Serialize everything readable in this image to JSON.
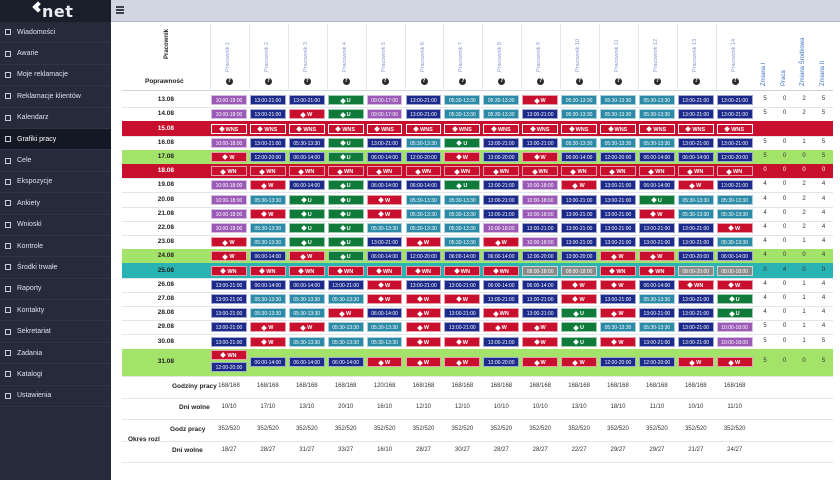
{
  "app": {
    "logo_text": "net"
  },
  "menu": [
    {
      "label": "Wiadomości",
      "icon": "message-icon"
    },
    {
      "label": "Awarie",
      "icon": "warning-icon"
    },
    {
      "label": "Moje reklamacje",
      "icon": "bookmark-icon"
    },
    {
      "label": "Reklamacje klientów",
      "icon": "users-icon"
    },
    {
      "label": "Kalendarz",
      "icon": "calendar-icon"
    },
    {
      "label": "Grafiki pracy",
      "icon": "schedule-icon",
      "active": true
    },
    {
      "label": "Cele",
      "icon": "target-icon"
    },
    {
      "label": "Ekspozycje",
      "icon": "display-icon"
    },
    {
      "label": "Ankiety",
      "icon": "survey-icon"
    },
    {
      "label": "Wnioski",
      "icon": "request-icon"
    },
    {
      "label": "Kontrole",
      "icon": "check-icon"
    },
    {
      "label": "Środki trwałe",
      "icon": "assets-icon"
    },
    {
      "label": "Raporty",
      "icon": "report-icon"
    },
    {
      "label": "Kontakty",
      "icon": "contacts-icon"
    },
    {
      "label": "Sekretariat",
      "icon": "office-icon"
    },
    {
      "label": "Zadania",
      "icon": "tasks-icon"
    },
    {
      "label": "Katalogi",
      "icon": "catalog-icon"
    },
    {
      "label": "Ustawienia",
      "icon": "settings-icon"
    }
  ],
  "table": {
    "employee_header": "Pracownik",
    "correctness_label": "Poprawność",
    "correctness_mark": "?",
    "employees": [
      "Pracownik 1",
      "Pracownik 2",
      "Pracownik 3",
      "Pracownik 4",
      "Pracownik 5",
      "Pracownik 6",
      "Pracownik 7",
      "Pracownik 8",
      "Pracownik 9",
      "Pracownik 10",
      "Pracownik 11",
      "Pracownik 12",
      "Pracownik 13",
      "Pracownik 14"
    ],
    "stat_headers": [
      "Zmiana I",
      "Praca",
      "Zmiana Środkowa",
      "Zmiana II"
    ],
    "rows": [
      {
        "date": "13.08",
        "cls": "",
        "cells": [
          "P:10:00-18:00",
          "B:13:00-21:00",
          "B:13:00-21:00",
          "U",
          "P:09:00-17:00",
          "B:13:00-21:00",
          "T:05:30-13:30",
          "T:05:30-13:30",
          "W",
          "T:05:30-13:30",
          "T:05:30-13:30",
          "T:05:30-13:30",
          "B:13:00-21:00",
          "B:13:00-21:00"
        ],
        "stats": [
          "5",
          "0",
          "2",
          "5"
        ]
      },
      {
        "date": "14.08",
        "cls": "",
        "cells": [
          "P:10:00-18:00",
          "B:13:00-21:00",
          "W",
          "U",
          "P:09:00-17:00",
          "B:13:00-21:00",
          "T:05:30-13:30",
          "T:05:30-13:30",
          "B:13:00-21:00",
          "T:05:30-13:30",
          "T:05:30-13:30",
          "T:05:30-13:30",
          "B:13:00-21:00",
          "B:13:00-21:00"
        ],
        "stats": [
          "5",
          "0",
          "2",
          "5"
        ]
      },
      {
        "date": "15.08",
        "cls": "red",
        "cells": [
          "WNS",
          "WNS",
          "WNS",
          "WNS",
          "WNS",
          "WNS",
          "WNS",
          "WNS",
          "WNS",
          "WNS",
          "WNS",
          "WNS",
          "WNS",
          "WNS"
        ],
        "stats": [
          "",
          "",
          "",
          ""
        ]
      },
      {
        "date": "16.08",
        "cls": "",
        "cells": [
          "P:10:00-18:00",
          "B:13:00-21:00",
          "B:05:30-13:30",
          "U",
          "B:13:00-21:00",
          "T:05:30-13:30",
          "U",
          "B:13:00-21:00",
          "B:13:00-21:00",
          "T:05:30-13:30",
          "T:05:30-13:30",
          "T:05:30-13:30",
          "B:13:00-21:00",
          "B:13:00-21:00"
        ],
        "stats": [
          "5",
          "0",
          "1",
          "5"
        ]
      },
      {
        "date": "17.08",
        "cls": "green",
        "cells": [
          "W",
          "B:12:00-20:00",
          "B:06:00-14:00",
          "U",
          "B:06:00-14:00",
          "B:12:00-20:00",
          "W",
          "B:13:00-20:00",
          "W",
          "B:06:00-14:00",
          "B:12:00-20:00",
          "B:06:00-14:00",
          "B:06:00-14:00",
          "B:12:00-20:00"
        ],
        "stats": [
          "5",
          "0",
          "0",
          "5"
        ]
      },
      {
        "date": "18.08",
        "cls": "red",
        "cells": [
          "WN",
          "WN",
          "WN",
          "WN",
          "WN",
          "WN",
          "WN",
          "WN",
          "WN",
          "WN",
          "WN",
          "WN",
          "WN",
          "WN"
        ],
        "stats": [
          "0",
          "0",
          "0",
          "0"
        ]
      },
      {
        "date": "19.08",
        "cls": "",
        "cells": [
          "P:10:00-18:00",
          "W",
          "B:06:00-14:00",
          "U",
          "B:06:00-14:00",
          "B:06:00-14:00",
          "U",
          "B:13:00-21:00",
          "P:10:00-18:00",
          "W",
          "B:13:00-21:00",
          "B:06:00-14:00",
          "W",
          "B:13:00-21:00"
        ],
        "stats": [
          "4",
          "0",
          "2",
          "4"
        ]
      },
      {
        "date": "20.08",
        "cls": "",
        "cells": [
          "P:10:00-18:00",
          "T:05:30-13:30",
          "U",
          "U",
          "W",
          "T:05:30-13:30",
          "T:05:30-13:30",
          "B:13:00-21:00",
          "P:10:00-18:00",
          "B:13:00-21:00",
          "B:13:00-21:00",
          "U",
          "T:05:30-13:30",
          "T:05:30-13:30"
        ],
        "stats": [
          "4",
          "0",
          "2",
          "4"
        ]
      },
      {
        "date": "21.08",
        "cls": "",
        "cells": [
          "P:10:00-18:00",
          "W",
          "U",
          "U",
          "W",
          "T:05:30-13:30",
          "T:05:30-13:30",
          "B:13:00-21:00",
          "P:10:00-18:00",
          "B:13:00-21:00",
          "B:13:00-21:00",
          "W",
          "T:05:30-13:30",
          "T:05:30-13:30"
        ],
        "stats": [
          "4",
          "0",
          "2",
          "4"
        ]
      },
      {
        "date": "22.08",
        "cls": "",
        "cells": [
          "P:10:00-18:00",
          "T:05:30-13:30",
          "U",
          "U",
          "T:05:30-13:30",
          "T:05:30-13:30",
          "T:05:30-13:30",
          "P:10:00-18:00",
          "B:13:00-21:00",
          "B:13:00-21:00",
          "B:13:00-21:00",
          "B:13:00-21:00",
          "B:13:00-21:00",
          "W"
        ],
        "stats": [
          "4",
          "0",
          "2",
          "4"
        ]
      },
      {
        "date": "23.08",
        "cls": "",
        "cells": [
          "W",
          "T:05:30-13:30",
          "U",
          "U",
          "B:13:00-21:00",
          "W",
          "T:05:30-13:30",
          "W",
          "P:10:00-18:00",
          "B:13:00-21:00",
          "B:13:00-21:00",
          "B:13:00-21:00",
          "B:13:00-21:00",
          "T:05:30-13:30"
        ],
        "stats": [
          "4",
          "0",
          "1",
          "4"
        ]
      },
      {
        "date": "24.08",
        "cls": "green",
        "cells": [
          "W",
          "B:06:00-14:00",
          "W",
          "U",
          "B:06:00-14:00",
          "B:12:00-20:00",
          "B:06:00-14:00",
          "B:06:00-14:00",
          "B:12:00-20:00",
          "B:13:00-20:00",
          "W",
          "W",
          "B:12:00-20:00",
          "B:06:00-14:00"
        ],
        "stats": [
          "4",
          "0",
          "0",
          "4"
        ]
      },
      {
        "date": "25.08",
        "cls": "teal",
        "cells": [
          "WN",
          "WN",
          "WN",
          "WN",
          "WN",
          "WN",
          "WN",
          "WN",
          "G:08:00-18:00",
          "G:08:00-18:00",
          "WN",
          "WN",
          "G:08:00-20:00",
          "G:08:00-18:00"
        ],
        "stats": [
          "0",
          "4",
          "0",
          "0"
        ]
      },
      {
        "date": "26.08",
        "cls": "",
        "cells": [
          "B:13:00-21:00",
          "B:06:00-14:00",
          "B:06:00-14:00",
          "B:13:00-21:00",
          "W",
          "B:13:00-21:00",
          "B:13:00-21:00",
          "B:06:00-14:00",
          "B:06:00-14:00",
          "W",
          "W",
          "B:06:00-14:00",
          "WN",
          "W"
        ],
        "stats": [
          "4",
          "0",
          "1",
          "4"
        ]
      },
      {
        "date": "27.08",
        "cls": "",
        "cells": [
          "B:13:00-21:00",
          "T:05:30-13:30",
          "T:05:30-13:30",
          "T:05:30-13:30",
          "W",
          "W",
          "W",
          "B:13:00-21:00",
          "B:13:00-21:00",
          "W",
          "B:13:00-21:00",
          "T:05:30-13:30",
          "B:13:00-21:00",
          "U"
        ],
        "stats": [
          "4",
          "0",
          "1",
          "4"
        ]
      },
      {
        "date": "28.08",
        "cls": "",
        "cells": [
          "B:13:00-21:00",
          "T:05:30-13:30",
          "T:05:30-13:30",
          "W",
          "B:06:00-14:00",
          "W",
          "B:13:00-21:00",
          "WN",
          "B:13:00-21:00",
          "U",
          "W",
          "B:13:00-21:00",
          "B:13:00-21:00",
          "U"
        ],
        "stats": [
          "4",
          "0",
          "1",
          "4"
        ]
      },
      {
        "date": "29.08",
        "cls": "",
        "cells": [
          "B:13:00-21:00",
          "W",
          "W",
          "T:05:30-13:30",
          "T:05:30-13:30",
          "W",
          "B:13:00-21:00",
          "W",
          "W",
          "U",
          "T:05:30-13:30",
          "T:05:30-13:30",
          "B:13:00-21:00",
          "P:10:00-18:00"
        ],
        "stats": [
          "5",
          "0",
          "1",
          "4"
        ]
      },
      {
        "date": "30.08",
        "cls": "",
        "cells": [
          "B:13:00-21:00",
          "W",
          "T:05:30-13:30",
          "T:05:30-13:30",
          "T:05:30-13:30",
          "W",
          "W",
          "B:13:00-21:00",
          "W",
          "U",
          "W",
          "B:13:00-21:00",
          "B:13:00-21:00",
          "P:10:00-18:00"
        ],
        "stats": [
          "5",
          "0",
          "1",
          "5"
        ]
      },
      {
        "date": "31.08",
        "cls": "green",
        "cells": [
          "WN+B:12:00-20:00",
          "B:06:00-14:00",
          "B:06:00-14:00",
          "B:06:00-14:00",
          "W",
          "W",
          "W",
          "B:13:00-20:00",
          "W",
          "W",
          "B:12:00-20:00",
          "B:12:00-20:00",
          "W",
          "W"
        ],
        "stats": [
          "5",
          "0",
          "0",
          "5"
        ]
      }
    ],
    "summary": {
      "hours_label": "Godziny pracy",
      "hours": [
        "168/168",
        "168/168",
        "168/168",
        "168/168",
        "120/168",
        "168/168",
        "168/168",
        "168/168",
        "168/168",
        "168/168",
        "168/168",
        "168/168",
        "168/168",
        "168/168"
      ],
      "free_label": "Dni wolne",
      "free": [
        "10/10",
        "17/10",
        "13/10",
        "20/10",
        "16/10",
        "12/10",
        "12/10",
        "10/10",
        "10/10",
        "13/10",
        "18/10",
        "11/10",
        "10/10",
        "11/10"
      ],
      "period_label": "Okres rozl",
      "period_hours_label": "Godz pracy",
      "period_hours": [
        "352/520",
        "352/520",
        "352/520",
        "352/520",
        "352/520",
        "352/520",
        "352/520",
        "352/520",
        "352/520",
        "352/520",
        "352/520",
        "352/520",
        "352/520",
        "352/520"
      ],
      "period_free_label": "Dni wolne",
      "period_free": [
        "18/27",
        "28/27",
        "31/27",
        "33/27",
        "16/10",
        "28/27",
        "30/27",
        "28/27",
        "28/27",
        "22/27",
        "29/27",
        "29/27",
        "21/27",
        "24/27"
      ]
    }
  },
  "colors": {
    "sidebar": "#262a3b",
    "red_day": "#c8102e",
    "green_day": "#a3e36a",
    "teal_day": "#2ab3b3",
    "shift_blue": "#1c2a8a",
    "shift_purple": "#9a5ab5",
    "shift_teal": "#2c8aa6",
    "leave_green": "#0f7a3a"
  }
}
